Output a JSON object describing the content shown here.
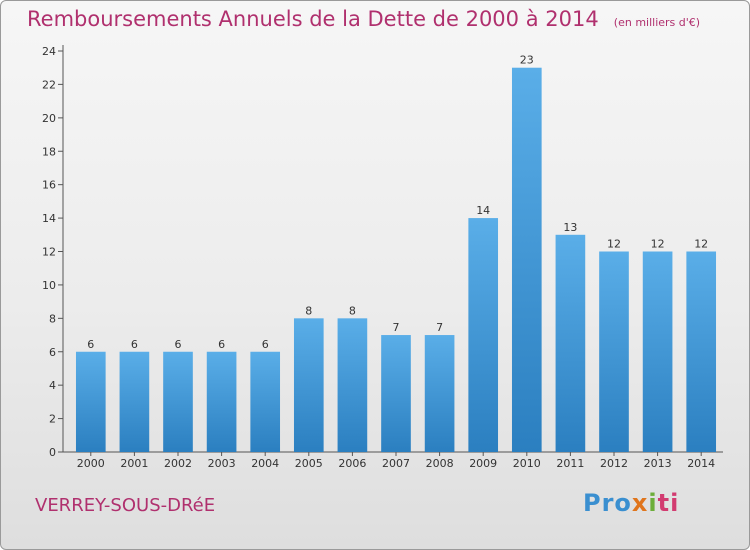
{
  "header": {
    "title": "Remboursements Annuels de la Dette de 2000 à 2014",
    "subtitle": "(en milliers d'€)"
  },
  "footer": {
    "place": "VERREY-SOUS-DRéE",
    "logo": [
      "Pro",
      "x",
      "i",
      "ti"
    ]
  },
  "colors": {
    "title": "#b0306e",
    "bar_top": "#5aaee8",
    "bar_bottom": "#2b7fc0",
    "frame_border": "#9a9a9a"
  },
  "chart_data": {
    "type": "bar",
    "title": "Remboursements Annuels de la Dette de 2000 à 2014",
    "subtitle": "(en milliers d'€)",
    "xlabel": "",
    "ylabel": "",
    "categories": [
      "2000",
      "2001",
      "2002",
      "2003",
      "2004",
      "2005",
      "2006",
      "2007",
      "2008",
      "2009",
      "2010",
      "2011",
      "2012",
      "2013",
      "2014"
    ],
    "values": [
      6,
      6,
      6,
      6,
      6,
      8,
      8,
      7,
      7,
      14,
      23,
      13,
      12,
      12,
      12
    ],
    "data_labels": [
      "6",
      "6",
      "6",
      "6",
      "6",
      "8",
      "8",
      "7",
      "7",
      "14",
      "23",
      "13",
      "12",
      "12",
      "12"
    ],
    "ylim": [
      0,
      24
    ],
    "yticks": [
      0,
      2,
      4,
      6,
      8,
      10,
      12,
      14,
      16,
      18,
      20,
      22,
      24
    ],
    "grid": false,
    "legend": "none"
  }
}
